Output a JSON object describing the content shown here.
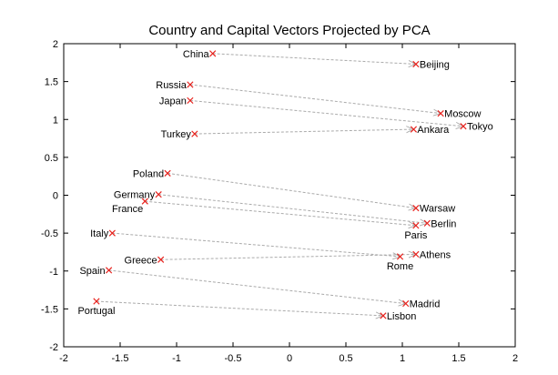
{
  "chart_data": {
    "type": "scatter",
    "title": "Country and Capital Vectors Projected by PCA",
    "xlabel": "",
    "ylabel": "",
    "xlim": [
      -2,
      2
    ],
    "ylim": [
      -2,
      2
    ],
    "xticks": [
      -2,
      -1.5,
      -1,
      -0.5,
      0,
      0.5,
      1,
      1.5,
      2
    ],
    "yticks": [
      -2,
      -1.5,
      -1,
      -0.5,
      0,
      0.5,
      1,
      1.5,
      2
    ],
    "xtick_labels": [
      "-2",
      "-1.5",
      "-1",
      "-0.5",
      "0",
      "0.5",
      "1",
      "1.5",
      "2"
    ],
    "ytick_labels": [
      "-2",
      "-1.5",
      "-1",
      "-0.5",
      "0",
      "0.5",
      "1",
      "1.5",
      "2"
    ],
    "grid": false,
    "marker_color": "#e8211c",
    "arrow_color": "#aaaaaa",
    "points": [
      {
        "label": "China",
        "x": -0.68,
        "y": 1.87,
        "label_pos": "left"
      },
      {
        "label": "Beijing",
        "x": 1.12,
        "y": 1.73,
        "label_pos": "right"
      },
      {
        "label": "Russia",
        "x": -0.88,
        "y": 1.46,
        "label_pos": "left"
      },
      {
        "label": "Moscow",
        "x": 1.34,
        "y": 1.08,
        "label_pos": "right"
      },
      {
        "label": "Japan",
        "x": -0.88,
        "y": 1.25,
        "label_pos": "left"
      },
      {
        "label": "Tokyo",
        "x": 1.54,
        "y": 0.91,
        "label_pos": "right"
      },
      {
        "label": "Turkey",
        "x": -0.84,
        "y": 0.81,
        "label_pos": "left"
      },
      {
        "label": "Ankara",
        "x": 1.1,
        "y": 0.87,
        "label_pos": "right"
      },
      {
        "label": "Poland",
        "x": -1.08,
        "y": 0.29,
        "label_pos": "left"
      },
      {
        "label": "Warsaw",
        "x": 1.12,
        "y": -0.17,
        "label_pos": "right"
      },
      {
        "label": "Germany",
        "x": -1.16,
        "y": 0.01,
        "label_pos": "left"
      },
      {
        "label": "Berlin",
        "x": 1.22,
        "y": -0.37,
        "label_pos": "right"
      },
      {
        "label": "France",
        "x": -1.28,
        "y": -0.08,
        "label_pos": "below-left"
      },
      {
        "label": "Paris",
        "x": 1.12,
        "y": -0.4,
        "label_pos": "below"
      },
      {
        "label": "Italy",
        "x": -1.57,
        "y": -0.5,
        "label_pos": "left"
      },
      {
        "label": "Athens",
        "x": 1.12,
        "y": -0.78,
        "label_pos": "right"
      },
      {
        "label": "Greece",
        "x": -1.14,
        "y": -0.85,
        "label_pos": "left"
      },
      {
        "label": "Rome",
        "x": 0.98,
        "y": -0.81,
        "label_pos": "below"
      },
      {
        "label": "Spain",
        "x": -1.6,
        "y": -0.99,
        "label_pos": "left"
      },
      {
        "label": "Madrid",
        "x": 1.03,
        "y": -1.43,
        "label_pos": "right"
      },
      {
        "label": "Portugal",
        "x": -1.71,
        "y": -1.4,
        "label_pos": "below"
      },
      {
        "label": "Lisbon",
        "x": 0.83,
        "y": -1.59,
        "label_pos": "right"
      }
    ],
    "arrows": [
      {
        "from": "China",
        "to": "Beijing"
      },
      {
        "from": "Russia",
        "to": "Moscow"
      },
      {
        "from": "Japan",
        "to": "Tokyo"
      },
      {
        "from": "Turkey",
        "to": "Ankara"
      },
      {
        "from": "Poland",
        "to": "Warsaw"
      },
      {
        "from": "Germany",
        "to": "Berlin"
      },
      {
        "from": "France",
        "to": "Paris"
      },
      {
        "from": "Italy",
        "to": "Rome"
      },
      {
        "from": "Greece",
        "to": "Athens"
      },
      {
        "from": "Spain",
        "to": "Madrid"
      },
      {
        "from": "Portugal",
        "to": "Lisbon"
      }
    ]
  }
}
